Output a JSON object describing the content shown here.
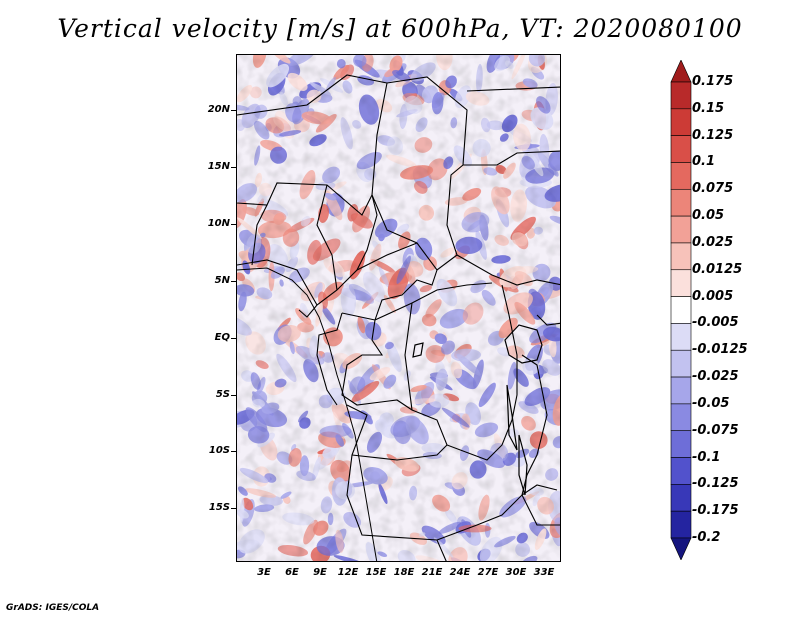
{
  "title": "Vertical velocity [m/s] at 600hPa, VT: 2020080100",
  "footer": "GrADS: IGES/COLA",
  "map": {
    "variable": "Vertical velocity",
    "units": "m/s",
    "level": "600hPa",
    "valid_time": "2020080100",
    "lat_labels": [
      "20N",
      "15N",
      "10N",
      "5N",
      "EQ",
      "5S",
      "10S",
      "15S"
    ],
    "lon_labels": [
      "3E",
      "6E",
      "9E",
      "12E",
      "15E",
      "18E",
      "21E",
      "24E",
      "27E",
      "30E",
      "33E"
    ]
  },
  "colorbar": {
    "labels": [
      "0.175",
      "0.15",
      "0.125",
      "0.1",
      "0.075",
      "0.05",
      "0.025",
      "0.0125",
      "0.005",
      "-0.005",
      "-0.0125",
      "-0.025",
      "-0.05",
      "-0.075",
      "-0.1",
      "-0.125",
      "-0.175",
      "-0.2"
    ],
    "colors": [
      "#a01c1c",
      "#b82a2a",
      "#cc3b36",
      "#d94f48",
      "#e4695f",
      "#ec8579",
      "#f2a197",
      "#f7c2ba",
      "#fbe0dc",
      "#ffffff",
      "#dcdcf6",
      "#c2c2f0",
      "#a6a6ea",
      "#8a8ae2",
      "#6e6ed8",
      "#5252cc",
      "#3838b8",
      "#2424a0",
      "#15157e"
    ]
  }
}
